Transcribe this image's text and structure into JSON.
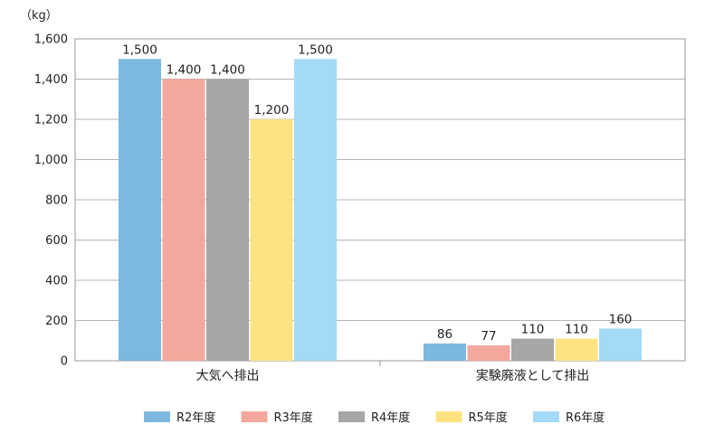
{
  "chart_data": {
    "type": "bar",
    "ylabel": "（kg）",
    "ylim": [
      0,
      1600
    ],
    "yticks": [
      0,
      200,
      400,
      600,
      800,
      1000,
      1200,
      1400,
      1600
    ],
    "ytick_labels": [
      "0",
      "200",
      "400",
      "600",
      "800",
      "1,000",
      "1,200",
      "1,400",
      "1,600"
    ],
    "grid": true,
    "legend_position": "bottom",
    "categories": [
      "大気へ排出",
      "実験廃液として排出"
    ],
    "series": [
      {
        "name": "R2年度",
        "color": "#7db8de",
        "values": [
          1500,
          86
        ],
        "labels": [
          "1,500",
          "86"
        ]
      },
      {
        "name": "R3年度",
        "color": "#f4a89d",
        "values": [
          1400,
          77
        ],
        "labels": [
          "1,400",
          "77"
        ]
      },
      {
        "name": "R4年度",
        "color": "#a6a6a6",
        "values": [
          1400,
          110
        ],
        "labels": [
          "1,400",
          "110"
        ]
      },
      {
        "name": "R5年度",
        "color": "#fde382",
        "values": [
          1200,
          110
        ],
        "labels": [
          "1,200",
          "110"
        ]
      },
      {
        "name": "R6年度",
        "color": "#a4d9f7",
        "values": [
          1500,
          160
        ],
        "labels": [
          "1,500",
          "160"
        ]
      }
    ]
  }
}
